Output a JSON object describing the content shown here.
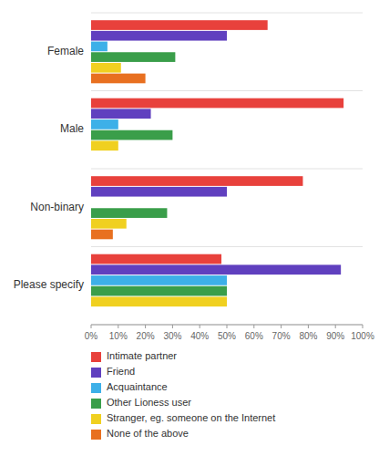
{
  "chart_data": {
    "type": "bar",
    "orientation": "horizontal",
    "categories": [
      "Female",
      "Male",
      "Non-binary",
      "Please specify"
    ],
    "series": [
      {
        "name": "Intimate partner",
        "color": "#e8413c",
        "values": [
          65,
          93,
          78,
          48
        ]
      },
      {
        "name": "Friend",
        "color": "#6040bf",
        "values": [
          50,
          22,
          50,
          92
        ]
      },
      {
        "name": "Acquaintance",
        "color": "#3db0e8",
        "values": [
          6,
          10,
          0,
          50
        ]
      },
      {
        "name": "Other Lioness user",
        "color": "#3a9e4a",
        "values": [
          31,
          30,
          28,
          50
        ]
      },
      {
        "name": "Stranger, eg. someone on the Internet",
        "color": "#f0d020",
        "values": [
          11,
          10,
          13,
          50
        ]
      },
      {
        "name": "None of the above",
        "color": "#e87020",
        "values": [
          20,
          0,
          8,
          0
        ]
      }
    ],
    "xlim": [
      0,
      100
    ],
    "xticks": [
      {
        "value": 0,
        "label": "0%"
      },
      {
        "value": 10,
        "label": "10%"
      },
      {
        "value": 20,
        "label": "20%"
      },
      {
        "value": 30,
        "label": "30%"
      },
      {
        "value": 40,
        "label": "40%"
      },
      {
        "value": 50,
        "label": "50%"
      },
      {
        "value": 60,
        "label": "60%"
      },
      {
        "value": 70,
        "label": "70%"
      },
      {
        "value": 80,
        "label": "80%"
      },
      {
        "value": 90,
        "label": "90%"
      },
      {
        "value": 100,
        "label": "100%"
      }
    ],
    "legend": "bottom"
  }
}
